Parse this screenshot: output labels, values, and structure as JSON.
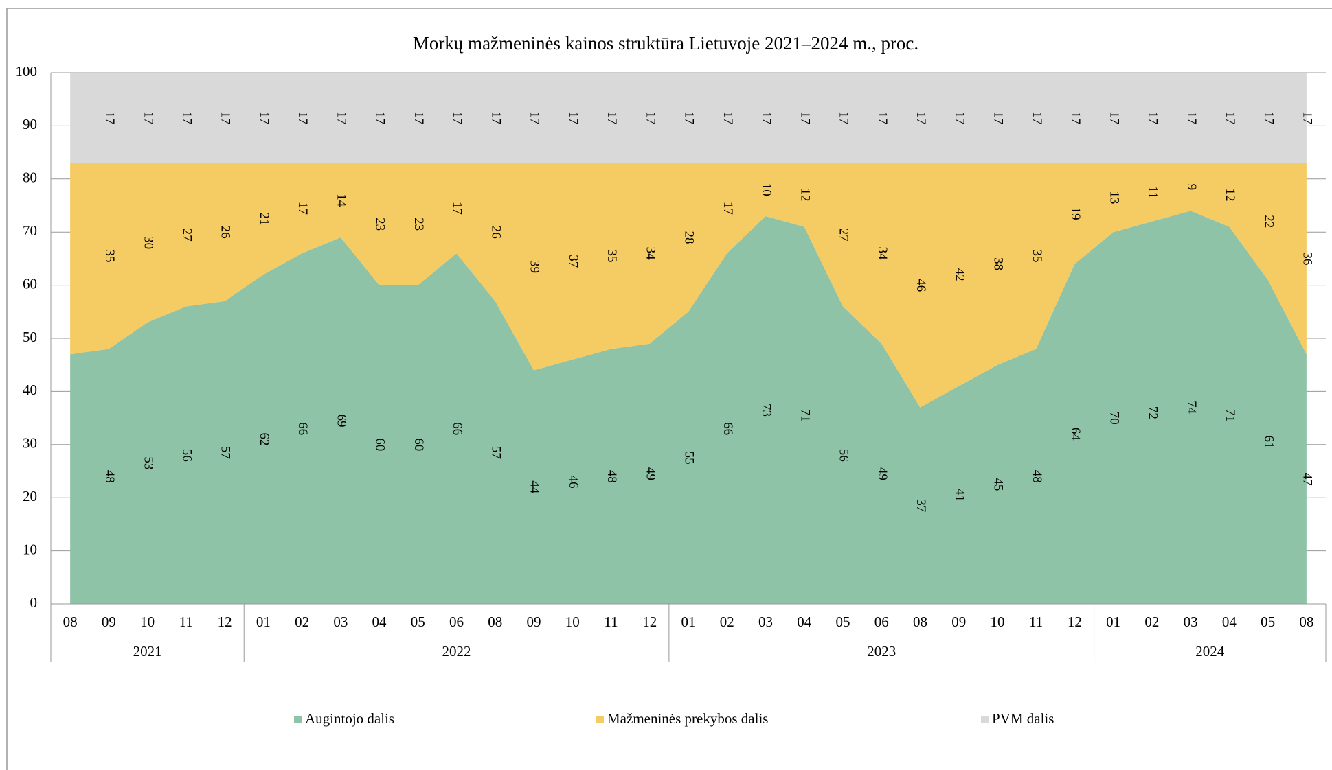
{
  "chart_data": {
    "type": "stacked_area",
    "title": "Morkų mažmeninės kainos struktūra Lietuvoje 2021–2024 m., proc.",
    "categories": [
      "08",
      "09",
      "10",
      "11",
      "12",
      "01",
      "02",
      "03",
      "04",
      "05",
      "06",
      "08",
      "09",
      "10",
      "11",
      "12",
      "01",
      "02",
      "03",
      "04",
      "05",
      "06",
      "08",
      "09",
      "10",
      "11",
      "12",
      "01",
      "02",
      "03",
      "04",
      "05",
      "08"
    ],
    "years": [
      "2021",
      "2021",
      "2021",
      "2021",
      "2021",
      "2022",
      "2022",
      "2022",
      "2022",
      "2022",
      "2022",
      "2022",
      "2022",
      "2022",
      "2022",
      "2022",
      "2023",
      "2023",
      "2023",
      "2023",
      "2023",
      "2023",
      "2023",
      "2023",
      "2023",
      "2023",
      "2023",
      "2024",
      "2024",
      "2024",
      "2024",
      "2024",
      "2024"
    ],
    "series": [
      {
        "name": "Augintojo dalis",
        "color": "#8fc3a7",
        "values": [
          47,
          48,
          53,
          56,
          57,
          62,
          66,
          69,
          60,
          60,
          66,
          57,
          44,
          46,
          48,
          49,
          55,
          66,
          73,
          71,
          56,
          49,
          37,
          41,
          45,
          48,
          64,
          70,
          72,
          74,
          71,
          61,
          47
        ],
        "value_labels": [
          null,
          "48",
          "53",
          "56",
          "57",
          "62",
          "66",
          "69",
          "60",
          "60",
          "66",
          "57",
          "44",
          "46",
          "48",
          "49",
          "55",
          "66",
          "73",
          "71",
          "56",
          "49",
          "37",
          "41",
          "45",
          "48",
          "64",
          "70",
          "72",
          "74",
          "71",
          "61",
          "47"
        ]
      },
      {
        "name": "Mažmeninės prekybos dalis",
        "color": "#f5cb63",
        "values": [
          36,
          35,
          30,
          27,
          26,
          21,
          17,
          14,
          23,
          23,
          17,
          26,
          39,
          37,
          35,
          34,
          28,
          17,
          10,
          12,
          27,
          34,
          46,
          42,
          38,
          35,
          19,
          13,
          11,
          9,
          12,
          22,
          36
        ],
        "value_labels": [
          null,
          "35",
          "30",
          "27",
          "26",
          "21",
          "17",
          "14",
          "23",
          "23",
          "17",
          "26",
          "39",
          "37",
          "35",
          "34",
          "28",
          "17",
          "10",
          "12",
          "27",
          "34",
          "46",
          "42",
          "38",
          "35",
          "19",
          "13",
          "11",
          "9",
          "12",
          "22",
          "36"
        ]
      },
      {
        "name": "PVM dalis",
        "color": "#d9d9d9",
        "values": [
          17,
          17,
          17,
          17,
          17,
          17,
          17,
          17,
          17,
          17,
          17,
          17,
          17,
          17,
          17,
          17,
          17,
          17,
          17,
          17,
          17,
          17,
          17,
          17,
          17,
          17,
          17,
          17,
          17,
          17,
          17,
          17,
          17
        ],
        "value_labels": [
          null,
          "17",
          "17",
          "17",
          "17",
          "17",
          "17",
          "17",
          "17",
          "17",
          "17",
          "17",
          "17",
          "17",
          "17",
          "17",
          "17",
          "17",
          "17",
          "17",
          "17",
          "17",
          "17",
          "17",
          "17",
          "17",
          "17",
          "17",
          "17",
          "17",
          "17",
          "17",
          "17"
        ]
      }
    ],
    "ylim": [
      0,
      100
    ],
    "yticks": [
      0,
      10,
      20,
      30,
      40,
      50,
      60,
      70,
      80,
      90,
      100
    ],
    "grid": true,
    "legend": "bottom"
  }
}
